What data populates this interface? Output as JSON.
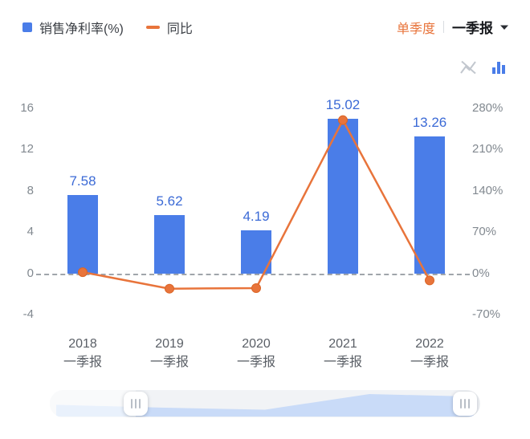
{
  "legend": {
    "bar_label": "销售净利率(%)",
    "line_label": "同比"
  },
  "period_selector": {
    "quarter_mode": "单季度",
    "selected": "一季报"
  },
  "toolbar": {
    "line_chart_icon": "line-chart-icon-disabled",
    "bar_chart_icon": "bar-chart-icon-active"
  },
  "chart_data": {
    "type": "bar",
    "categories": [
      "2018",
      "2019",
      "2020",
      "2021",
      "2022"
    ],
    "category_subtitle": "一季报",
    "series": [
      {
        "name": "销售净利率(%)",
        "type": "bar",
        "axis": "left",
        "color": "#4a7de8",
        "values": [
          7.58,
          5.62,
          4.19,
          15.02,
          13.26
        ]
      },
      {
        "name": "同比",
        "type": "line",
        "axis": "right",
        "color": "#e8743b",
        "values": [
          2,
          -26,
          -25,
          260,
          -12
        ]
      }
    ],
    "left_axis": {
      "min": -4,
      "max": 16,
      "ticks": [
        16,
        12,
        8,
        4,
        0,
        -4
      ]
    },
    "right_axis": {
      "min": -70,
      "max": 280,
      "ticks": [
        280,
        210,
        140,
        70,
        0,
        -70
      ],
      "suffix": "%"
    },
    "grid": false,
    "zero_line_dashed": true,
    "legend_position": "top-left"
  },
  "slider": {
    "range_percent": [
      20,
      96.5
    ]
  }
}
